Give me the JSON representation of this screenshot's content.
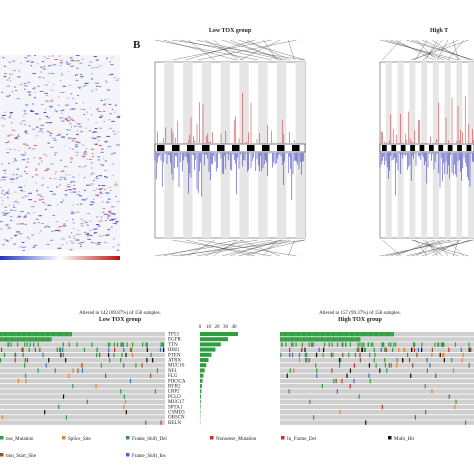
{
  "panel_b_label": "B",
  "cnv_low": {
    "title": "Low TOX group"
  },
  "cnv_high": {
    "title": "High T"
  },
  "onco_low": {
    "caption": "Altered in 142 (89.87%) of 158 samples.",
    "title": "Low TOX group",
    "genes": [
      "TP53",
      "EGFR",
      "TTN",
      "IDH1",
      "PTEN",
      "ATRX",
      "MUC16",
      "NF1",
      "FLG",
      "PIK3CA",
      "RYR2",
      "LRP2",
      "PCLO",
      "MUC17",
      "SPTA1",
      "CSMD3",
      "OBSCN",
      "RELN"
    ],
    "xticks": [
      0,
      10,
      20,
      30,
      40
    ]
  },
  "onco_high": {
    "caption": "Altered in 157 (99.37%) of 158 samples.",
    "title": "High TOX group"
  },
  "legend": [
    "nse_Mutation",
    "Splice_Site",
    "Frame_Shift_Del",
    "Nonsense_Mutation",
    "In_Frame_Del",
    "Multi_Hit",
    "tion_Start_Site",
    "Frame_Shift_Ins"
  ]
}
